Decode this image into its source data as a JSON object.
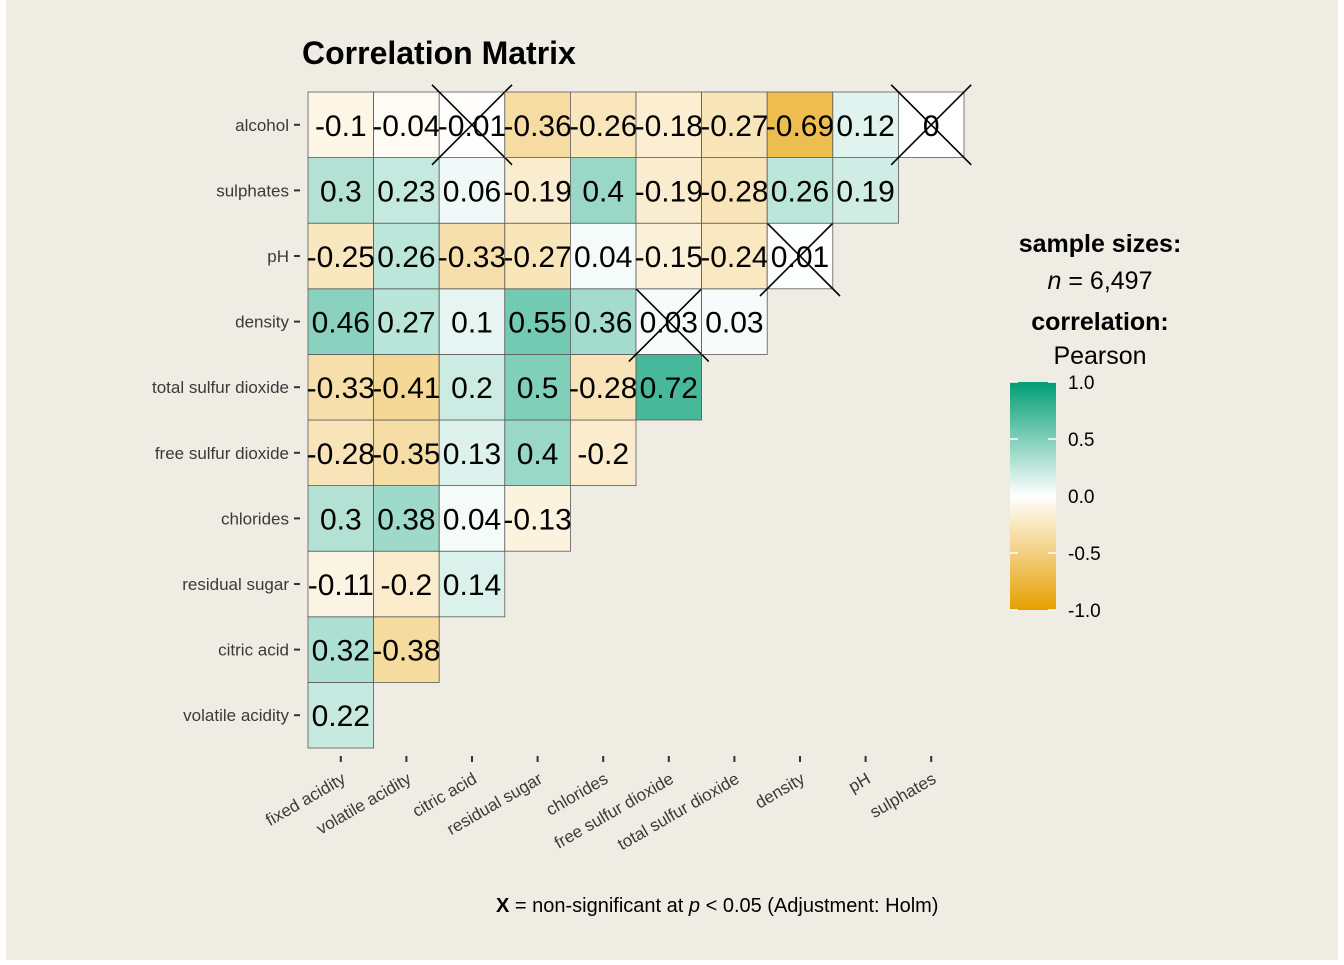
{
  "title": "Correlation Matrix",
  "colors": {
    "background": "#EFECE4",
    "negative": "#E69F00",
    "neutral": "#FFFFFF",
    "positive": "#009E73",
    "tile_border": "#5a5a5a",
    "text": "#000000",
    "axis_text": "#3a3a3a"
  },
  "legend": {
    "sample_title": "sample sizes:",
    "n_italic": "n",
    "n_value": " = 6,497",
    "corr_title": "correlation:",
    "corr_method": "Pearson",
    "ticks": [
      "1.0",
      "0.5",
      "0.0",
      "-0.5",
      "-1.0"
    ]
  },
  "caption": {
    "bold": "X",
    "middle": " = non-significant at ",
    "italic": "p",
    "tail": " < 0.05 (Adjustment: Holm)"
  },
  "chart_data": {
    "type": "heatmap",
    "title": "Correlation Matrix",
    "x_labels": [
      "fixed acidity",
      "volatile acidity",
      "citric acid",
      "residual sugar",
      "chlorides",
      "free sulfur dioxide",
      "total sulfur dioxide",
      "density",
      "pH",
      "sulphates"
    ],
    "y_labels": [
      "volatile acidity",
      "citric acid",
      "residual sugar",
      "chlorides",
      "free sulfur dioxide",
      "total sulfur dioxide",
      "density",
      "pH",
      "sulphates",
      "alcohol"
    ],
    "color_scale": [
      -1.0,
      1.0
    ],
    "values": [
      [
        0.22
      ],
      [
        0.32,
        -0.38
      ],
      [
        -0.11,
        -0.2,
        0.14
      ],
      [
        0.3,
        0.38,
        0.04,
        -0.13
      ],
      [
        -0.28,
        -0.35,
        0.13,
        0.4,
        -0.2
      ],
      [
        -0.33,
        -0.41,
        0.2,
        0.5,
        -0.28,
        0.72
      ],
      [
        0.46,
        0.27,
        0.1,
        0.55,
        0.36,
        0.03,
        0.03
      ],
      [
        -0.25,
        0.26,
        -0.33,
        -0.27,
        0.04,
        -0.15,
        -0.24,
        0.01
      ],
      [
        0.3,
        0.23,
        0.06,
        -0.19,
        0.4,
        -0.19,
        -0.28,
        0.26,
        0.19
      ],
      [
        -0.1,
        -0.04,
        -0.01,
        -0.36,
        -0.26,
        -0.18,
        -0.27,
        -0.69,
        0.12,
        0
      ]
    ],
    "nonsignificant": [
      [
        false
      ],
      [
        false,
        false
      ],
      [
        false,
        false,
        false
      ],
      [
        false,
        false,
        false,
        false
      ],
      [
        false,
        false,
        false,
        false,
        false
      ],
      [
        false,
        false,
        false,
        false,
        false,
        false
      ],
      [
        false,
        false,
        false,
        false,
        false,
        true,
        false
      ],
      [
        false,
        false,
        false,
        false,
        false,
        false,
        false,
        true
      ],
      [
        false,
        false,
        false,
        false,
        false,
        false,
        false,
        false,
        false
      ],
      [
        false,
        false,
        true,
        false,
        false,
        false,
        false,
        false,
        false,
        true
      ]
    ]
  }
}
